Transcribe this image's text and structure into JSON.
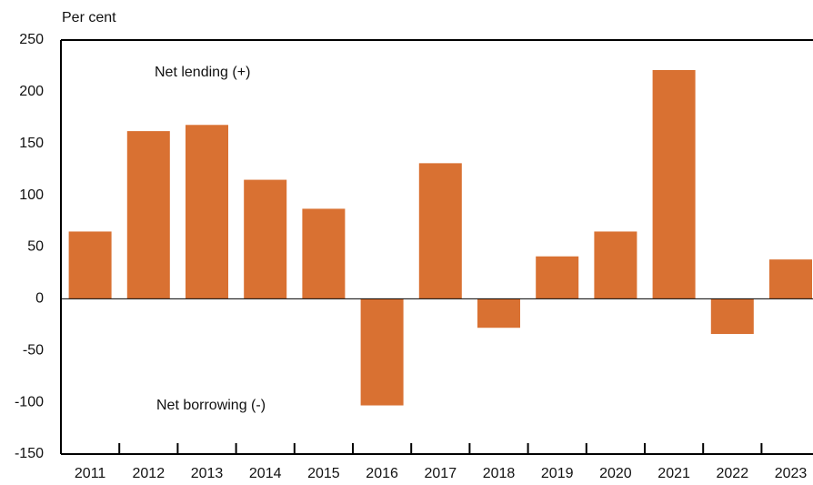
{
  "chart_data": {
    "type": "bar",
    "y_axis_label": "Per cent",
    "annotations": [
      "Net lending (+)",
      "Net borrowing (-)"
    ],
    "categories": [
      "2011",
      "2012",
      "2013",
      "2014",
      "2015",
      "2016",
      "2017",
      "2018",
      "2019",
      "2020",
      "2021",
      "2022",
      "2023"
    ],
    "values": [
      65,
      162,
      168,
      115,
      87,
      -103,
      131,
      -28,
      41,
      65,
      221,
      -34,
      38
    ],
    "color": "#d97132",
    "ylim": [
      -150,
      250
    ],
    "yticks": [
      -150,
      -100,
      -50,
      0,
      50,
      100,
      150,
      200,
      250
    ],
    "grid": false
  }
}
